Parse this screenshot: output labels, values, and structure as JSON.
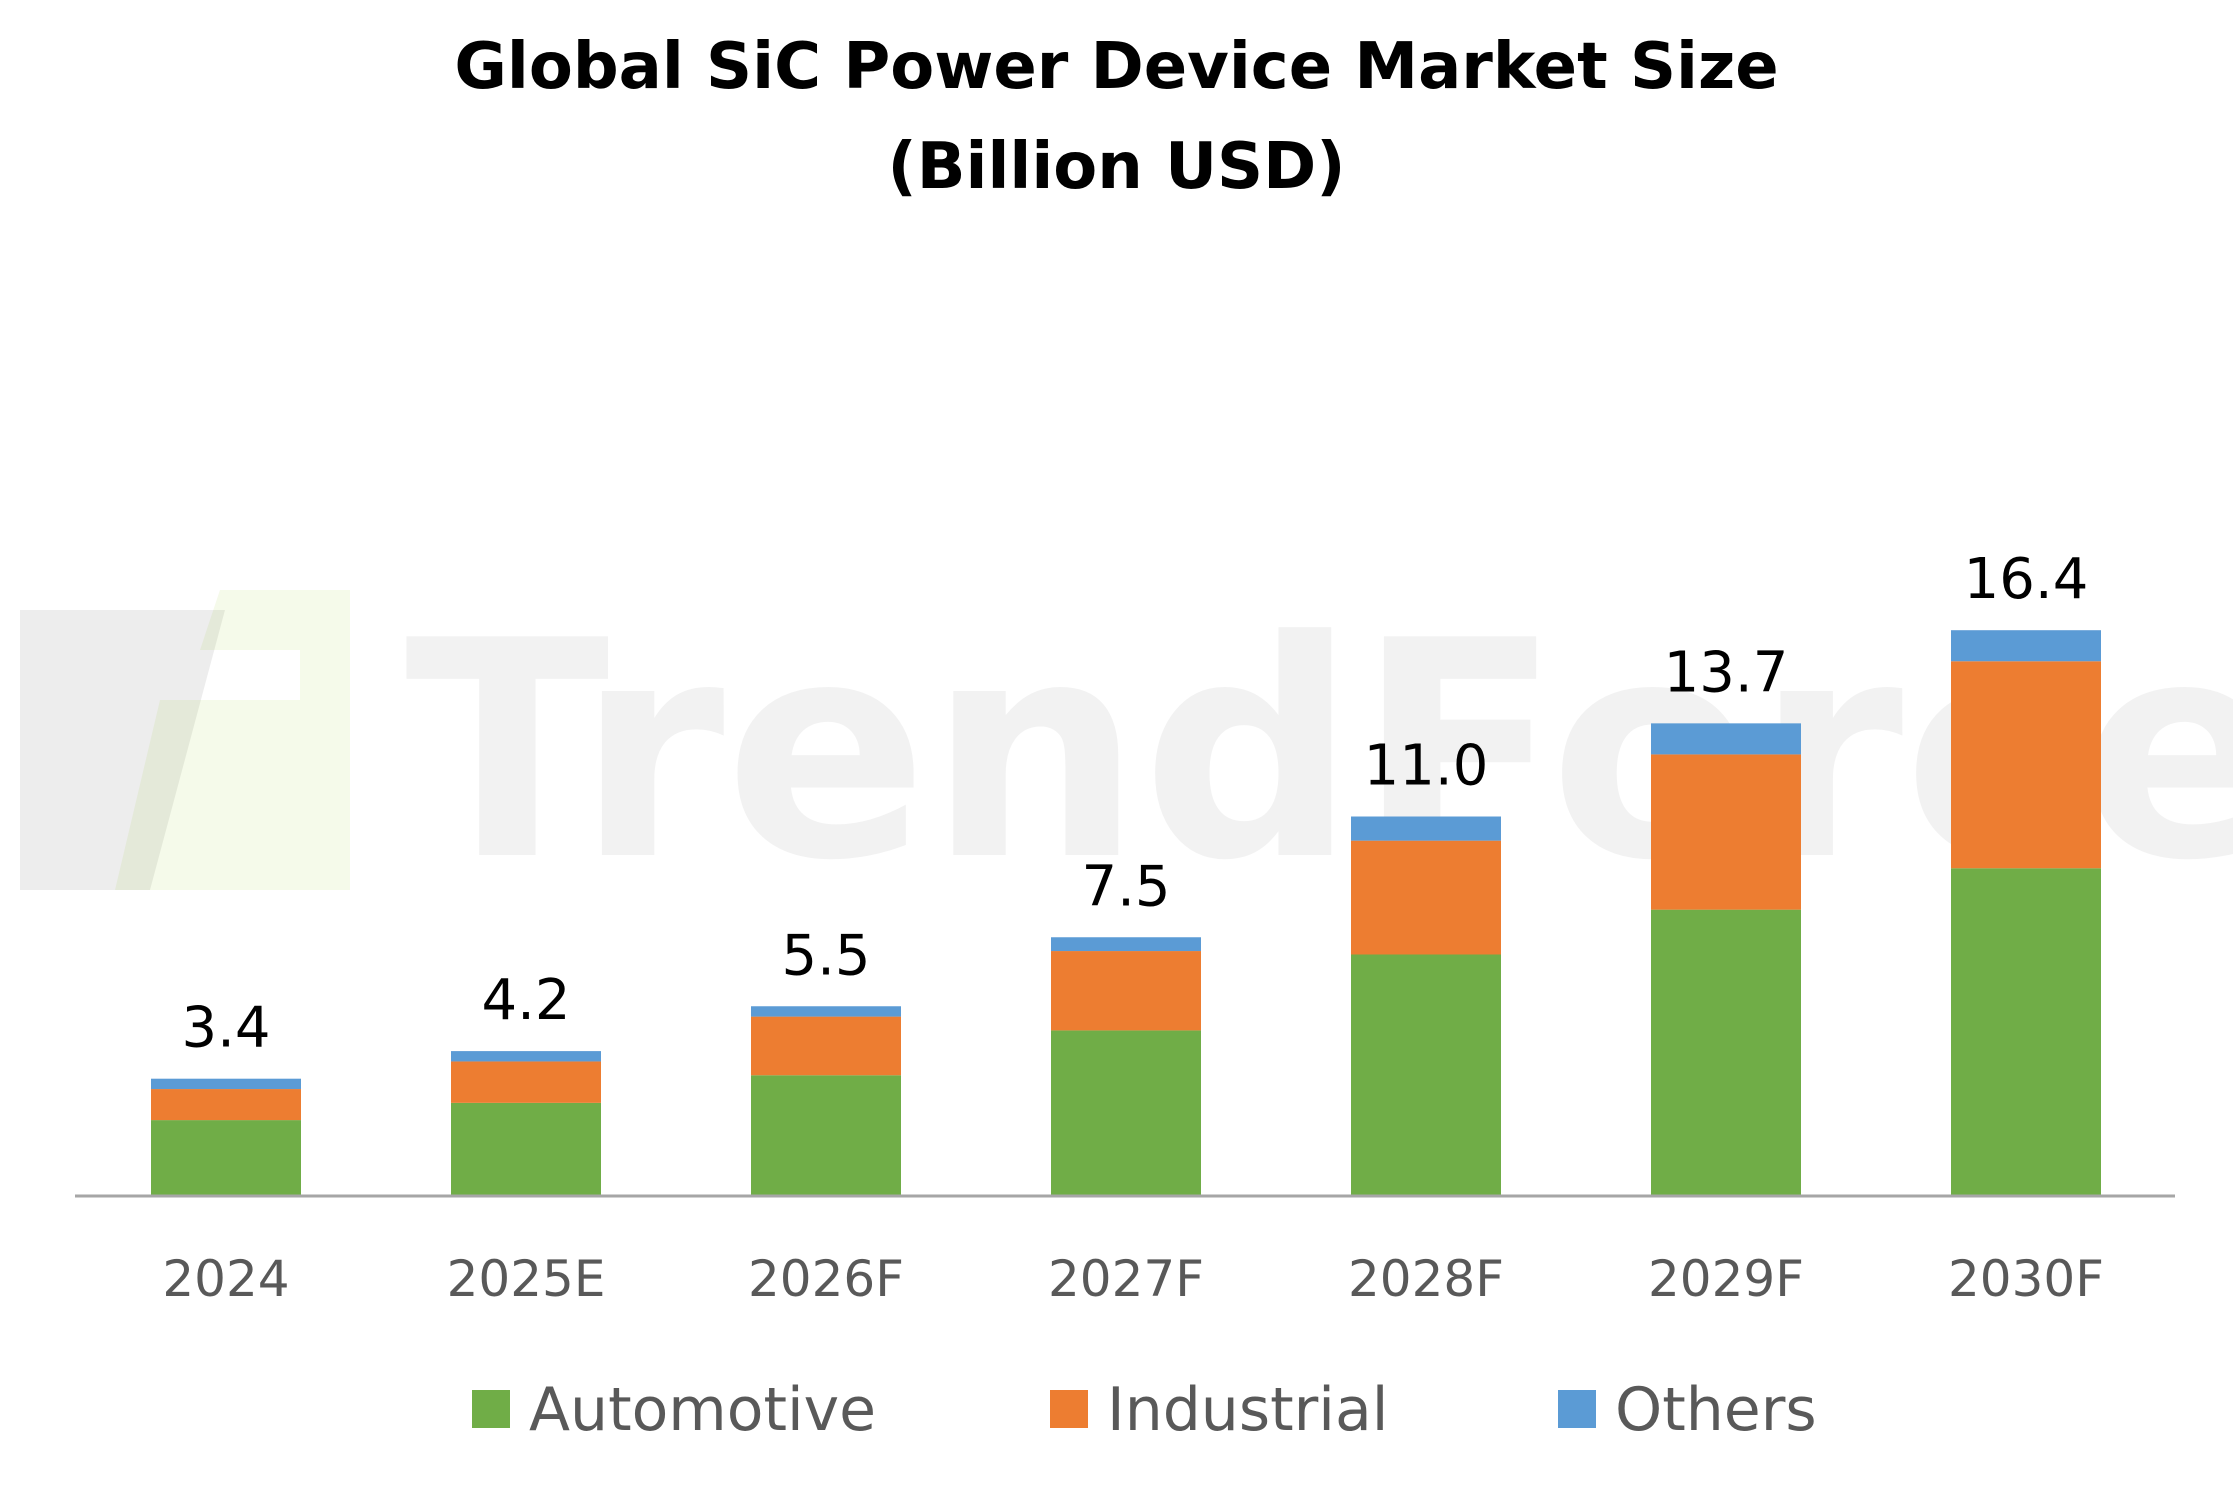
{
  "chart_data": {
    "type": "bar",
    "stacked": true,
    "title": [
      "Global SiC Power Device Market Size",
      "(Billion USD)"
    ],
    "categories": [
      "2024",
      "2025E",
      "2026F",
      "2027F",
      "2028F",
      "2029F",
      "2030F"
    ],
    "series": [
      {
        "name": "Automotive",
        "color": "#70AD47",
        "values": [
          2.2,
          2.7,
          3.5,
          4.8,
          7.0,
          8.3,
          9.5
        ]
      },
      {
        "name": "Industrial",
        "color": "#ED7D31",
        "values": [
          0.9,
          1.2,
          1.7,
          2.3,
          3.3,
          4.5,
          6.0
        ]
      },
      {
        "name": "Others",
        "color": "#5B9BD5",
        "values": [
          0.3,
          0.3,
          0.3,
          0.4,
          0.7,
          0.9,
          0.9
        ]
      }
    ],
    "totals": [
      "3.4",
      "4.2",
      "5.5",
      "7.5",
      "11.0",
      "13.7",
      "16.4"
    ],
    "ylim": [
      0,
      20
    ],
    "grid": false,
    "legend_position": "bottom"
  },
  "watermark": {
    "text": "TrendForce",
    "color": "#000000"
  },
  "axis_color": "#A6A6A6"
}
